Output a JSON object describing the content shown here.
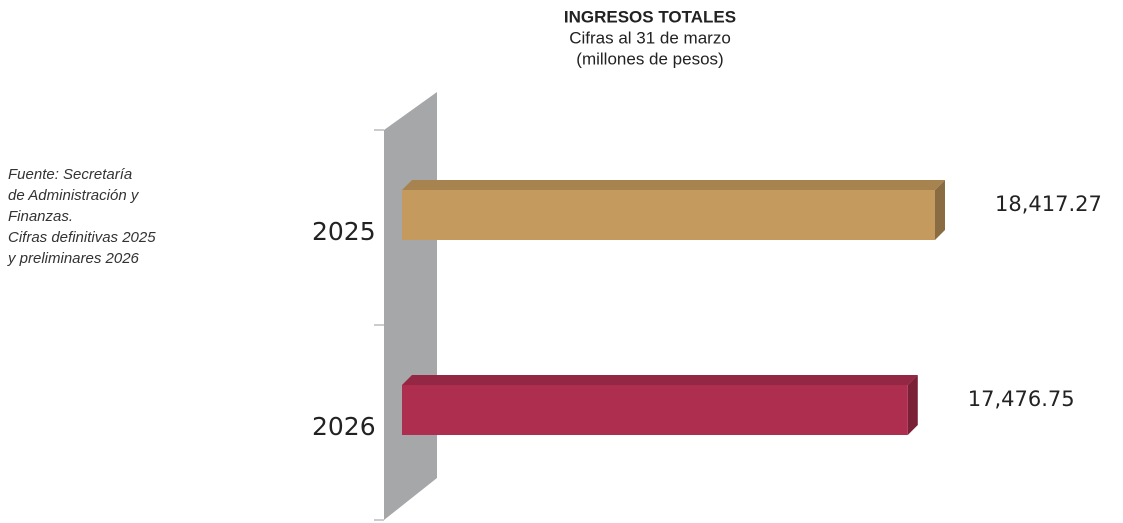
{
  "chart_data": {
    "type": "bar3d",
    "title": "INGRESOS TOTALES",
    "subtitle": [
      "Cifras al 31 de marzo",
      "(millones de pesos)"
    ],
    "annotation": [
      "Fuente: Secretaría",
      "de Administración y",
      "Finanzas.",
      "Cifras definitivas 2025",
      "y preliminares 2026"
    ],
    "categories": [
      "2025",
      "2026"
    ],
    "values": [
      18417.27,
      17476.75
    ],
    "value_labels": [
      "18,417.27",
      "17,476.75"
    ],
    "colors": [
      "#c49a5e",
      "#ae2e4f"
    ]
  }
}
